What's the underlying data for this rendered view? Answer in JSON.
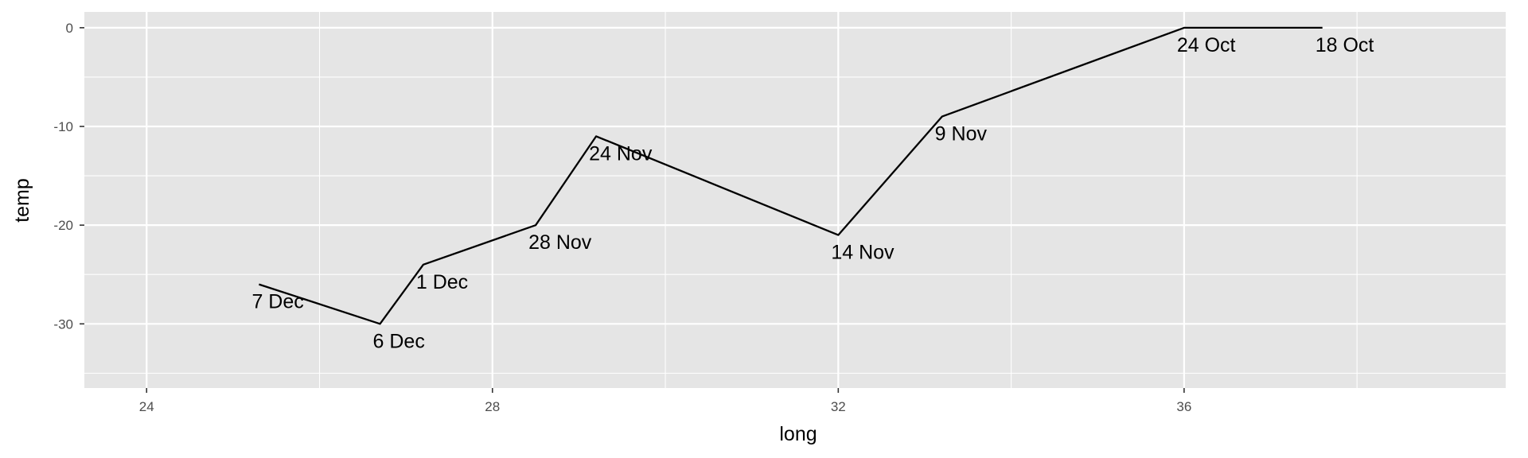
{
  "chart_data": {
    "type": "line",
    "title": "",
    "xlabel": "long",
    "ylabel": "temp",
    "xlim": [
      23.28,
      39.72
    ],
    "ylim": [
      -36.5,
      1.6
    ],
    "x_ticks": [
      24,
      28,
      32,
      36
    ],
    "y_ticks": [
      0,
      -10,
      -20,
      -30
    ],
    "grid": true,
    "legend": "none",
    "colors": {
      "panel": "#e5e5e5",
      "grid": "#ffffff",
      "line": "#000000",
      "tick_text": "#4d4d4d"
    },
    "points": [
      {
        "x": 25.3,
        "y": -26,
        "label": "7 Dec"
      },
      {
        "x": 26.7,
        "y": -30,
        "label": "6 Dec"
      },
      {
        "x": 27.2,
        "y": -24,
        "label": "1 Dec"
      },
      {
        "x": 28.5,
        "y": -20,
        "label": "28 Nov"
      },
      {
        "x": 29.2,
        "y": -11,
        "label": "24 Nov"
      },
      {
        "x": 32.0,
        "y": -21,
        "label": "14 Nov"
      },
      {
        "x": 33.2,
        "y": -9,
        "label": "9 Nov"
      },
      {
        "x": 36.0,
        "y": 0,
        "label": "24 Oct"
      },
      {
        "x": 37.6,
        "y": 0,
        "label": "18 Oct"
      }
    ]
  }
}
